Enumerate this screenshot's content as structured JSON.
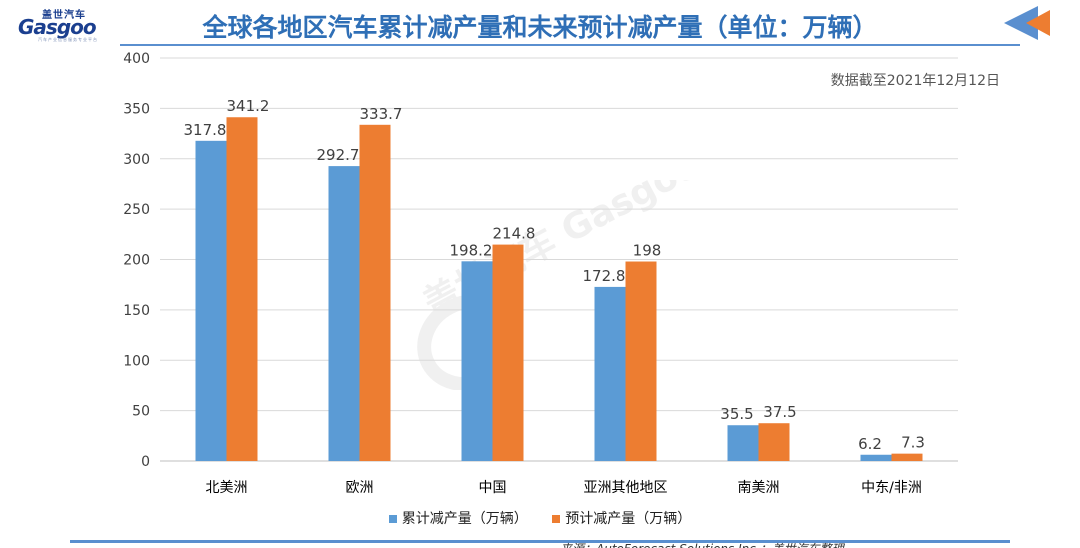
{
  "header": {
    "logo_cn": "盖世汽车",
    "logo_en": "Gasgoo",
    "logo_sub": "汽车产业信息服务专业平台",
    "title": "全球各地区汽车累计减产量和未来预计减产量（单位：万辆）"
  },
  "note": "数据截至2021年12月12日",
  "source": "来源：AutoForecast Solutions Inc.；盖世汽车整理",
  "watermark_text": "盖世汽车 Gasgoo",
  "colors": {
    "title": "#2f6fb6",
    "series1": "#5b9bd5",
    "series2": "#ed7d31",
    "grid": "#d9d9d9",
    "accent": "#5a8fcf"
  },
  "icons": {
    "corner_arrow": "arrow-left-icon"
  },
  "chart_data": {
    "type": "bar",
    "title": "全球各地区汽车累计减产量和未来预计减产量（单位：万辆）",
    "categories": [
      "北美洲",
      "欧洲",
      "中国",
      "亚洲其他地区",
      "南美洲",
      "中东/非洲"
    ],
    "series": [
      {
        "name": "累计减产量（万辆）",
        "values": [
          317.8,
          292.7,
          198.2,
          172.8,
          35.5,
          6.2
        ],
        "labels": [
          "317.8",
          "292.7",
          "198.2",
          "172.8",
          "35.5",
          "6.2"
        ]
      },
      {
        "name": "预计减产量（万辆）",
        "values": [
          341.2,
          333.7,
          214.8,
          198,
          37.5,
          7.3
        ],
        "labels": [
          "341.2",
          "333.7",
          "214.8",
          "198",
          "37.5",
          "7.3"
        ]
      }
    ],
    "ylim": [
      0,
      400
    ],
    "yticks": [
      "0",
      "50",
      "100",
      "150",
      "200",
      "250",
      "300",
      "350",
      "400"
    ],
    "grid": true,
    "legend": "bottom",
    "xlabel": "",
    "ylabel": ""
  }
}
